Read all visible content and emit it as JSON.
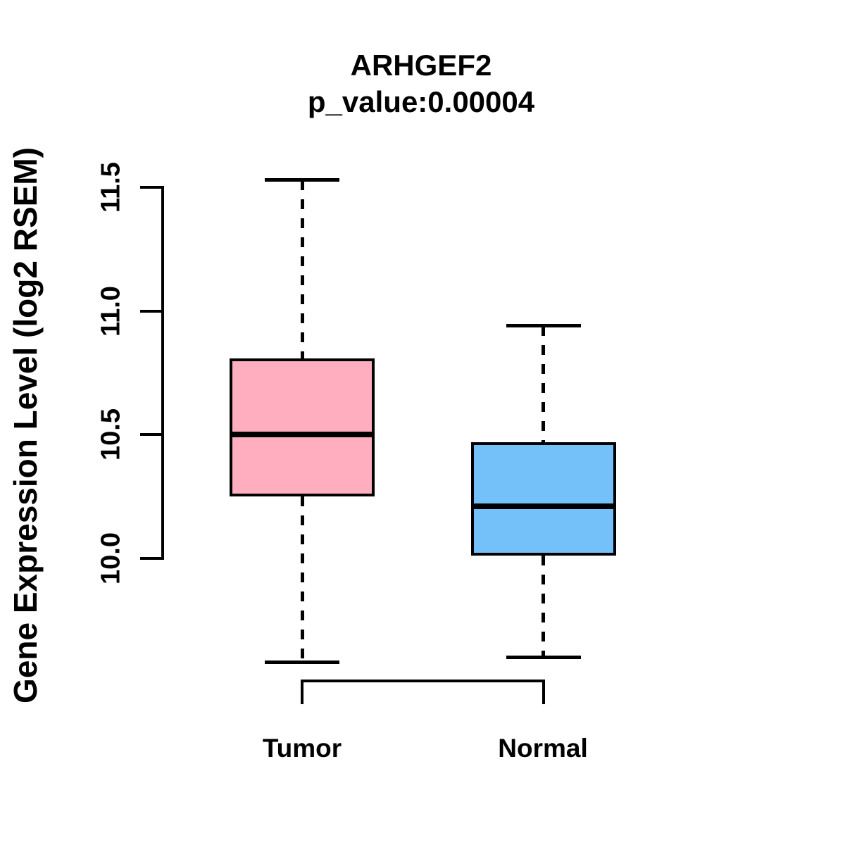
{
  "chart_data": {
    "type": "boxplot",
    "title": "ARHGEF2",
    "subtitle": "p_value:0.00004",
    "ylabel": "Gene Expression Level (log2 RSEM)",
    "categories": [
      "Tumor",
      "Normal"
    ],
    "y_axis": {
      "tick_values": [
        11.5,
        11.0,
        10.5,
        10.0
      ],
      "tick_labels": [
        "11.5",
        "11.0",
        "10.5",
        "10.0"
      ],
      "range_shown": [
        10.0,
        11.5
      ]
    },
    "series": [
      {
        "name": "Tumor",
        "fill_color": "#FFAEC0",
        "whisker_low": 9.58,
        "q1": 10.25,
        "median": 10.5,
        "q3": 10.81,
        "whisker_high": 11.53
      },
      {
        "name": "Normal",
        "fill_color": "#74C0F8",
        "whisker_low": 9.6,
        "q1": 10.01,
        "median": 10.21,
        "q3": 10.47,
        "whisker_high": 10.94
      }
    ],
    "style": {
      "box_border_color": "#000000",
      "median_color": "#000000",
      "whisker_style": "dashed",
      "legend": "none",
      "grid": false
    }
  }
}
